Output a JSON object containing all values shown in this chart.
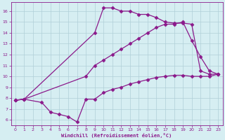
{
  "bg_color": "#d6eef2",
  "grid_color": "#b0cfd8",
  "line_color": "#8b1a8b",
  "marker": "D",
  "markersize": 2.5,
  "linewidth": 0.9,
  "title": "Windchill (Refroidissement éolien,°C)",
  "xlim": [
    -0.5,
    23.5
  ],
  "ylim": [
    5.5,
    16.8
  ],
  "xticks": [
    0,
    1,
    2,
    3,
    4,
    5,
    6,
    7,
    8,
    9,
    10,
    11,
    12,
    13,
    14,
    15,
    16,
    17,
    18,
    19,
    20,
    21,
    22,
    23
  ],
  "yticks": [
    6,
    7,
    8,
    9,
    10,
    11,
    12,
    13,
    14,
    15,
    16
  ],
  "lines": [
    {
      "x": [
        0,
        1,
        9,
        10,
        11,
        12,
        13,
        14,
        15,
        16,
        17,
        18,
        19,
        20,
        21,
        22,
        23
      ],
      "y": [
        7.8,
        7.9,
        14.0,
        16.3,
        16.3,
        16.0,
        16.0,
        15.7,
        15.7,
        15.4,
        15.0,
        14.9,
        14.9,
        14.8,
        10.5,
        10.2,
        10.2
      ]
    },
    {
      "x": [
        0,
        1,
        8,
        9,
        10,
        11,
        12,
        13,
        14,
        15,
        16,
        17,
        18,
        19,
        20,
        21,
        22,
        23
      ],
      "y": [
        7.8,
        7.9,
        10.0,
        11.0,
        11.5,
        12.0,
        12.5,
        13.0,
        13.5,
        14.0,
        14.5,
        14.8,
        14.8,
        15.0,
        13.3,
        11.8,
        10.5,
        10.2
      ]
    },
    {
      "x": [
        0,
        1,
        3,
        4,
        5,
        6,
        7,
        8,
        9,
        10,
        11,
        12,
        13,
        14,
        15,
        16,
        17,
        18,
        19,
        20,
        21,
        22,
        23
      ],
      "y": [
        7.8,
        7.9,
        7.6,
        6.7,
        6.5,
        6.3,
        5.8,
        7.9,
        7.9,
        8.5,
        8.8,
        9.0,
        9.3,
        9.5,
        9.7,
        9.9,
        10.0,
        10.1,
        10.1,
        10.0,
        10.0,
        10.0,
        10.2
      ]
    }
  ]
}
